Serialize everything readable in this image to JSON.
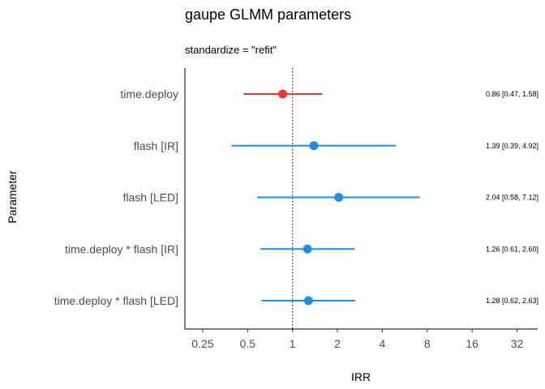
{
  "chart_data": {
    "type": "forest",
    "title": "gaupe GLMM parameters",
    "subtitle": "standardize  = \"refit\"",
    "xlabel": "IRR",
    "ylabel": "Parameter",
    "x_scale": "log2",
    "xlim": [
      0.19,
      44
    ],
    "x_ticks": [
      0.25,
      0.5,
      1,
      2,
      4,
      8,
      16,
      32
    ],
    "x_tick_labels": [
      "0.25",
      "0.5",
      "1",
      "2",
      "4",
      "8",
      "16",
      "32"
    ],
    "reference_line": 1,
    "grid": false,
    "colors": {
      "negative": "#e8382f",
      "positive": "#1e8fe0"
    },
    "rows": [
      {
        "parameter": "time.deploy",
        "estimate": 0.86,
        "ci_low": 0.47,
        "ci_high": 1.58,
        "label": "0.86 [0.47, 1.58]",
        "direction": "negative"
      },
      {
        "parameter": "flash [IR]",
        "estimate": 1.39,
        "ci_low": 0.39,
        "ci_high": 4.92,
        "label": "1.39 [0.39, 4.92]",
        "direction": "positive"
      },
      {
        "parameter": "flash [LED]",
        "estimate": 2.04,
        "ci_low": 0.58,
        "ci_high": 7.12,
        "label": "2.04 [0.58, 7.12]",
        "direction": "positive"
      },
      {
        "parameter": "time.deploy * flash [IR]",
        "estimate": 1.26,
        "ci_low": 0.61,
        "ci_high": 2.6,
        "label": "1.26 [0.61, 2.60]",
        "direction": "positive"
      },
      {
        "parameter": "time.deploy * flash [LED]",
        "estimate": 1.28,
        "ci_low": 0.62,
        "ci_high": 2.63,
        "label": "1.28 [0.62, 2.63]",
        "direction": "positive"
      }
    ]
  }
}
